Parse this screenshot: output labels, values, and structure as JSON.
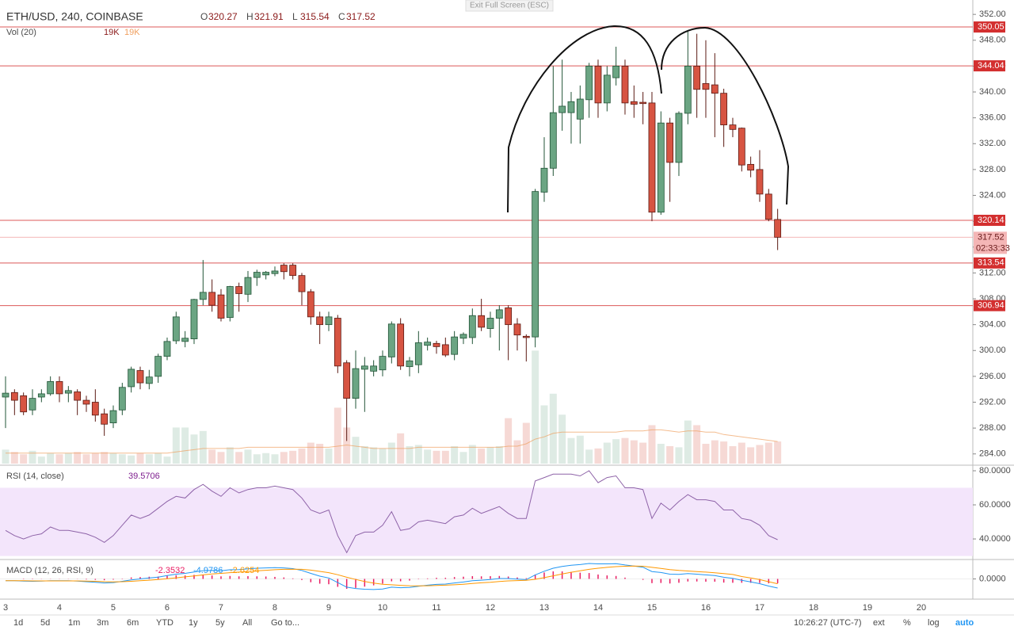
{
  "chart_data": [
    {
      "type": "candlestick",
      "title": "ETH/USD, 240, COINBASE",
      "ohlc_letters": [
        "O",
        "H",
        "L",
        "C"
      ],
      "volume_title": "Vol (20)",
      "volume_text": "19K",
      "volume_ma_text": "19K",
      "x_labels": [
        "3",
        "4",
        "5",
        "6",
        "7",
        "8",
        "9",
        "10",
        "11",
        "12",
        "13",
        "14",
        "15",
        "16",
        "17",
        "18",
        "19",
        "20"
      ],
      "open": [
        292.8,
        293.5,
        293,
        290.8,
        292.8,
        293.3,
        295.2,
        293.4,
        293.6,
        292.3,
        292,
        290.2,
        288.8,
        290.8,
        294.4,
        296.9,
        294.9,
        296,
        299.1,
        301.5,
        301.4,
        301.8,
        307.9,
        309,
        308.6,
        305.1,
        309.9,
        308.7,
        311.3,
        311.7,
        311.9,
        313.2,
        313.2,
        311.6,
        309.1,
        305.2,
        304,
        305,
        298.1,
        292.6,
        297.1,
        296.8,
        297,
        299,
        304.1,
        297.5,
        297.8,
        300.8,
        301.1,
        300.9,
        299.4,
        301.9,
        302,
        305.4,
        303.4,
        305,
        306.6,
        304.1,
        302.2,
        302.1,
        324.5,
        328.2,
        336.8,
        336.8,
        335.8,
        338.8,
        344,
        338.3,
        342.2,
        344,
        338.5,
        338.4,
        338.3,
        321.4,
        335.2,
        329.1,
        336.7,
        344,
        341.3,
        341.1,
        339.8,
        334.9,
        334.4,
        328.8,
        328,
        324.2,
        320.27
      ],
      "high": [
        296,
        294,
        293.5,
        294,
        294,
        296,
        296,
        294.5,
        294,
        293,
        294,
        291,
        291.5,
        295,
        297.5,
        297.5,
        297,
        299.5,
        302,
        306,
        303,
        308,
        314,
        311,
        309.5,
        310,
        310.5,
        312.3,
        312.5,
        312.3,
        313,
        313.5,
        313.5,
        312,
        309.5,
        306,
        306,
        305.5,
        298.5,
        300,
        299,
        298.5,
        300,
        304.5,
        305,
        299,
        303,
        302,
        301.5,
        302,
        303,
        302.8,
        306.5,
        308,
        306,
        307,
        307,
        305,
        302.5,
        325,
        333,
        344,
        345,
        340,
        341,
        344.5,
        345,
        344,
        347,
        345,
        341,
        340,
        340,
        337,
        336,
        337,
        349.5,
        349,
        348,
        346,
        340.5,
        336,
        334.5,
        330,
        331,
        325,
        321.91
      ],
      "low": [
        288,
        290,
        290,
        290,
        292,
        293,
        292,
        292,
        290,
        290.5,
        289,
        286.8,
        288,
        290,
        293.5,
        294,
        294,
        295,
        298.5,
        301,
        300.5,
        301,
        307,
        306,
        304.5,
        304.5,
        306,
        307.5,
        310,
        311,
        311.5,
        311,
        311,
        307,
        304,
        301,
        303,
        296.5,
        286,
        291,
        290.5,
        296,
        296,
        298,
        297,
        296,
        296.5,
        300,
        299.5,
        299,
        298.5,
        301,
        301,
        303,
        302,
        300,
        298.5,
        300,
        298.3,
        300.5,
        323,
        327,
        334,
        332,
        332,
        336,
        336,
        337,
        341,
        336.5,
        336,
        335,
        320,
        321,
        323,
        327,
        335,
        336,
        336,
        333,
        331.5,
        333,
        327.7,
        326.8,
        323,
        320,
        315.54
      ],
      "close": [
        293.4,
        292.3,
        290.5,
        292.6,
        293.3,
        295.2,
        293.3,
        293.8,
        292.3,
        291.7,
        290,
        288.6,
        290.7,
        294.3,
        297.1,
        295,
        295.9,
        299.1,
        301.4,
        305.2,
        301.9,
        307.9,
        309,
        307,
        305,
        309.9,
        308.8,
        311.3,
        312.1,
        312.1,
        312.3,
        312.2,
        311.6,
        309.1,
        305.2,
        304,
        305.2,
        297.6,
        292.6,
        297.2,
        297.6,
        297.6,
        299.1,
        304.1,
        297.6,
        298.4,
        301.2,
        301.3,
        300.6,
        299.3,
        302.1,
        302.5,
        305.4,
        303.6,
        305,
        306.3,
        304,
        302.4,
        302,
        324.6,
        328.2,
        336.8,
        337.8,
        338.5,
        338.9,
        344,
        338.3,
        342.6,
        344,
        338.3,
        338.1,
        338.2,
        321.4,
        335.2,
        329.1,
        336.7,
        344,
        340.4,
        340.4,
        339.8,
        334.9,
        334.2,
        328.7,
        327.9,
        324.2,
        320.3,
        317.52
      ],
      "volume": [
        12,
        10,
        8,
        11,
        6,
        9,
        8,
        9,
        10,
        8,
        9,
        10,
        9,
        8,
        7,
        9,
        8,
        9,
        6,
        31,
        31,
        25,
        28,
        12,
        10,
        14,
        10,
        12,
        8,
        9,
        8,
        10,
        11,
        13,
        18,
        17,
        13,
        48,
        31,
        23,
        15,
        14,
        13,
        18,
        26,
        15,
        16,
        12,
        11,
        11,
        15,
        10,
        16,
        13,
        14,
        15,
        39,
        20,
        35,
        97,
        50,
        60,
        42,
        22,
        24,
        12,
        13,
        18,
        21,
        22,
        20,
        18,
        33,
        17,
        15,
        14,
        37,
        33,
        17,
        20,
        19,
        15,
        18,
        14,
        16,
        18,
        19
      ],
      "volume_ma": [
        9,
        9,
        9,
        9,
        9,
        9,
        9,
        9,
        9,
        9,
        9,
        9,
        9,
        9,
        9,
        9,
        9,
        9,
        9,
        10,
        11,
        12,
        13,
        13,
        13,
        13,
        13,
        14,
        14,
        14,
        14,
        14,
        14,
        14,
        14,
        14,
        14,
        15,
        16,
        15,
        14,
        13,
        13,
        13,
        13,
        13,
        14,
        14,
        14,
        14,
        14,
        14,
        14,
        14,
        14,
        14,
        15,
        15,
        17,
        21,
        23,
        26,
        27,
        27,
        27,
        27,
        27,
        27,
        27,
        28,
        28,
        28,
        29,
        29,
        28,
        27,
        28,
        28,
        27,
        27,
        25,
        24,
        23,
        22,
        21,
        20,
        19
      ],
      "up_color": "#6ba583",
      "down_color": "#d75442",
      "volume_ma_color": "#f0a060",
      "ylim": [
        282.5,
        353
      ],
      "yticks": [
        {
          "value": 284,
          "label": "284.00"
        },
        {
          "value": 288,
          "label": "288.00"
        },
        {
          "value": 292,
          "label": "292.00"
        },
        {
          "value": 296,
          "label": "296.00"
        },
        {
          "value": 300,
          "label": "300.00"
        },
        {
          "value": 304,
          "label": "304.00"
        },
        {
          "value": 308,
          "label": "308.00"
        },
        {
          "value": 312,
          "label": "312.00"
        },
        {
          "value": 316,
          "label": "316.00"
        },
        {
          "value": 320,
          "label": "320.00"
        },
        {
          "value": 324,
          "label": "324.00"
        },
        {
          "value": 328,
          "label": "328.00"
        },
        {
          "value": 332,
          "label": "332.00"
        },
        {
          "value": 336,
          "label": "336.00"
        },
        {
          "value": 340,
          "label": "340.00"
        },
        {
          "value": 344,
          "label": "344.00"
        },
        {
          "value": 348,
          "label": "348.00"
        },
        {
          "value": 352,
          "label": "352.00"
        }
      ],
      "levels": [
        350.05,
        344.04,
        320.14,
        313.54,
        306.94
      ],
      "level_color": "#d32f2f",
      "countdown": "02:33:33"
    },
    {
      "type": "line",
      "title": "RSI (14, close)",
      "values": [
        45,
        42,
        40,
        42,
        43,
        47,
        45,
        45,
        44,
        43,
        41,
        38,
        42,
        48,
        54,
        52,
        54,
        58,
        62,
        65,
        64,
        69,
        72,
        68,
        65,
        70,
        67,
        69,
        70,
        70,
        71,
        70,
        69,
        64,
        57,
        55,
        57,
        42,
        32,
        42,
        44,
        44,
        48,
        56,
        45,
        46,
        50,
        51,
        50,
        49,
        53,
        54,
        58,
        55,
        57,
        59,
        55,
        52,
        52,
        74,
        76,
        78,
        78,
        78,
        77,
        80,
        73,
        76,
        77,
        70,
        70,
        69,
        52,
        61,
        57,
        62,
        66,
        63,
        63,
        62,
        57,
        57,
        52,
        51,
        48,
        42,
        39.5706
      ],
      "color": "#8e63a8",
      "band": [
        30,
        70
      ],
      "band_color": "#f3e5fb",
      "ylim": [
        28.4,
        82.8
      ],
      "yticks": [
        {
          "value": 40,
          "label": "40.0000"
        },
        {
          "value": 60,
          "label": "60.0000"
        },
        {
          "value": 80,
          "label": "80.0000"
        }
      ]
    },
    {
      "type": "macd",
      "title": "MACD (12, 26, RSI, 9)",
      "histogram": [
        0,
        0,
        -0.2,
        -0.2,
        -0.1,
        0.1,
        0.1,
        0.1,
        -0.1,
        -0.3,
        -0.5,
        -0.7,
        -0.4,
        0.2,
        0.8,
        1,
        1.2,
        1.3,
        1.7,
        2,
        1.9,
        2.2,
        2.3,
        1.9,
        1.4,
        1.6,
        1.4,
        1.5,
        1.4,
        1.3,
        1.1,
        0.8,
        0.3,
        -0.6,
        -1.8,
        -2.6,
        -2.9,
        -4.3,
        -5.4,
        -4.9,
        -4.2,
        -3.5,
        -2.6,
        -1.3,
        -1.3,
        -0.9,
        -0.2,
        0.3,
        0.6,
        0.6,
        1,
        1.2,
        1.5,
        1.4,
        1.5,
        1.6,
        1.3,
        0.8,
        0.4,
        2.4,
        3.5,
        4.1,
        4.1,
        3.8,
        3.4,
        3.2,
        2.4,
        1.9,
        1.6,
        0.7,
        0,
        -0.5,
        -2.3,
        -2.2,
        -2.5,
        -2.1,
        -1.4,
        -1.4,
        -1.5,
        -1.5,
        -2,
        -2.1,
        -2.1,
        -2.1,
        -2.2,
        -2.4,
        -2.3532
      ],
      "macd": [
        -1,
        -1,
        -1.2,
        -1.3,
        -1.2,
        -1,
        -1,
        -1,
        -1.2,
        -1.5,
        -1.8,
        -2.2,
        -2,
        -1.3,
        -0.5,
        0,
        0.5,
        1,
        1.8,
        2.6,
        3,
        3.8,
        4.5,
        4.6,
        4.4,
        5,
        5.1,
        5.5,
        5.8,
        6,
        6.1,
        6,
        5.6,
        4.6,
        3,
        1.5,
        0.5,
        -2,
        -4.5,
        -5.2,
        -5.6,
        -5.8,
        -5.5,
        -4.5,
        -4.8,
        -4.6,
        -4,
        -3.4,
        -3,
        -2.8,
        -2.2,
        -1.7,
        -1,
        -0.7,
        -0.3,
        0.2,
        0.2,
        -0.1,
        -0.4,
        2.2,
        4.2,
        5.8,
        6.8,
        7.4,
        7.8,
        8.4,
        8.2,
        8.2,
        8.3,
        7.6,
        7,
        6.4,
        4,
        3.5,
        2.6,
        2.5,
        2.9,
        2.6,
        2.2,
        1.8,
        0.9,
        0.3,
        -0.8,
        -1.6,
        -2.6,
        -3.9,
        -4.9786
      ],
      "signal": [
        -1,
        -1,
        -1,
        -1.1,
        -1.1,
        -1.1,
        -1.1,
        -1.1,
        -1.1,
        -1.2,
        -1.3,
        -1.5,
        -1.6,
        -1.5,
        -1.3,
        -1,
        -0.7,
        -0.3,
        0.1,
        0.6,
        1.1,
        1.6,
        2.2,
        2.7,
        3,
        3.4,
        3.7,
        4,
        4.4,
        4.7,
        5,
        5.2,
        5.3,
        5.2,
        4.8,
        4.1,
        3.4,
        2.3,
        0.9,
        -0.3,
        -1.4,
        -2.3,
        -2.9,
        -3.2,
        -3.5,
        -3.7,
        -3.8,
        -3.7,
        -3.6,
        -3.4,
        -3.2,
        -2.9,
        -2.5,
        -2.1,
        -1.8,
        -1.4,
        -1.1,
        -0.9,
        -0.8,
        -0.2,
        0.7,
        1.7,
        2.7,
        3.6,
        4.4,
        5.2,
        5.8,
        6.3,
        6.7,
        6.9,
        7,
        6.9,
        6.3,
        5.7,
        5.1,
        4.6,
        4.3,
        4,
        3.7,
        3.3,
        2.9,
        2.4,
        1.3,
        0.5,
        -0.4,
        -1.5,
        -2.6254
      ],
      "histogram_color": "#e91e63",
      "macd_color": "#2196f3",
      "signal_color": "#ff9800",
      "ylim": [
        -11,
        9.7
      ],
      "yticks": [
        {
          "value": 0,
          "label": "0.0000"
        }
      ]
    }
  ],
  "exit_fullscreen": "Exit Full Screen (ESC)",
  "toolbar": {
    "ranges": [
      "1d",
      "5d",
      "1m",
      "3m",
      "6m",
      "YTD",
      "1y",
      "5y",
      "All"
    ],
    "goto": "Go to...",
    "clock": "10:26:27 (UTC-7)",
    "options": [
      "ext",
      "%",
      "log",
      "auto"
    ]
  }
}
